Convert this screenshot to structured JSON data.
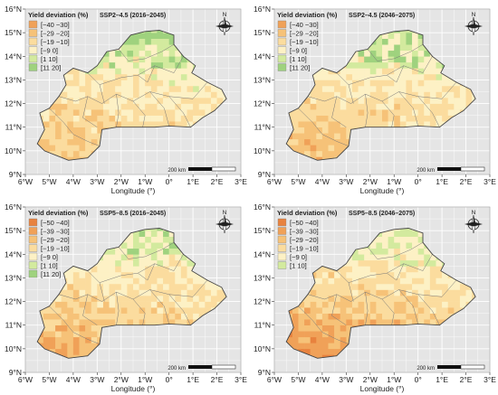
{
  "colors": {
    "c_m50_m40": "#e8823e",
    "c_m39_m30": "#f0a158",
    "c_m29_m20": "#f6c278",
    "c_m19_m10": "#fbdc9e",
    "c_m9_0": "#fdf1c5",
    "c_1_10": "#d3ea9e",
    "c_11_20": "#9fd27e",
    "plot_bg": "#e5e5e5",
    "grid": "#ffffff",
    "boundary": "#444444"
  },
  "panels": [
    {
      "title": "SSP2–4.5 (2016–2045)",
      "legend_title": "Yield deviation (%)",
      "legend": [
        {
          "label": "[−40 −30]",
          "color": "#f0a158"
        },
        {
          "label": "[−29 −20]",
          "color": "#f6c278"
        },
        {
          "label": "[−19 −10]",
          "color": "#fbdc9e"
        },
        {
          "label": "[−9  0]",
          "color": "#fdf1c5"
        },
        {
          "label": "[1  10]",
          "color": "#d3ea9e"
        },
        {
          "label": "[11  20]",
          "color": "#9fd27e"
        }
      ],
      "scale_label": "200 km",
      "north_label": "N",
      "xlabel": "Longitude (°)",
      "xticks": [
        "6°W",
        "5°W",
        "4°W",
        "3°W",
        "2°W",
        "1°W",
        "0°",
        "1°E",
        "2°E",
        "3°E"
      ],
      "yticks": [
        "9°N",
        "10°N",
        "11°N",
        "12°N",
        "13°N",
        "14°N",
        "15°N",
        "16°N"
      ],
      "south_bias": 0.35,
      "north_green": 0.55
    },
    {
      "title": "SSP2–4.5 (2046–2075)",
      "legend_title": "Yield deviation (%)",
      "legend": [
        {
          "label": "[−40 −30]",
          "color": "#f0a158"
        },
        {
          "label": "[−29 −20]",
          "color": "#f6c278"
        },
        {
          "label": "[−19 −10]",
          "color": "#fbdc9e"
        },
        {
          "label": "[−9  0]",
          "color": "#fdf1c5"
        },
        {
          "label": "[1  10]",
          "color": "#d3ea9e"
        },
        {
          "label": "[11  20]",
          "color": "#9fd27e"
        }
      ],
      "scale_label": "200 km",
      "north_label": "N",
      "xlabel": "Longitude (°)",
      "xticks": [
        "6°W",
        "5°W",
        "4°W",
        "3°W",
        "2°W",
        "1°W",
        "0°",
        "1°E",
        "2°E",
        "3°E"
      ],
      "yticks": [
        "9°N",
        "10°N",
        "11°N",
        "12°N",
        "13°N",
        "14°N",
        "15°N",
        "16°N"
      ],
      "south_bias": 0.45,
      "north_green": 0.45
    },
    {
      "title": "SSP5–8.5 (2016–2045)",
      "legend_title": "Yield deviation (%)",
      "legend": [
        {
          "label": "[−50 −40]",
          "color": "#e8823e"
        },
        {
          "label": "[−39 −30]",
          "color": "#f0a158"
        },
        {
          "label": "[−29 −20]",
          "color": "#f6c278"
        },
        {
          "label": "[−19 −10]",
          "color": "#fbdc9e"
        },
        {
          "label": "[−9  0]",
          "color": "#fdf1c5"
        },
        {
          "label": "[1  10]",
          "color": "#d3ea9e"
        },
        {
          "label": "[11  20]",
          "color": "#9fd27e"
        }
      ],
      "scale_label": "200 km",
      "north_label": "N",
      "xlabel": "Longitude (°)",
      "xticks": [
        "6°W",
        "5°W",
        "4°W",
        "3°W",
        "2°W",
        "1°W",
        "0°",
        "1°E",
        "2°E",
        "3°E"
      ],
      "yticks": [
        "9°N",
        "10°N",
        "11°N",
        "12°N",
        "13°N",
        "14°N",
        "15°N",
        "16°N"
      ],
      "south_bias": 0.6,
      "north_green": 0.2
    },
    {
      "title": "SSP5–8.5 (2046–2075)",
      "legend_title": "Yield deviation (%)",
      "legend": [
        {
          "label": "[−50 −40]",
          "color": "#e8823e"
        },
        {
          "label": "[−39 −30]",
          "color": "#f0a158"
        },
        {
          "label": "[−29 −20]",
          "color": "#f6c278"
        },
        {
          "label": "[−19 −10]",
          "color": "#fbdc9e"
        },
        {
          "label": "[−9  0]",
          "color": "#fdf1c5"
        },
        {
          "label": "[1  10]",
          "color": "#d3ea9e"
        }
      ],
      "scale_label": "200 km",
      "north_label": "N",
      "xlabel": "Longitude (°)",
      "xticks": [
        "6°W",
        "5°W",
        "4°W",
        "3°W",
        "2°W",
        "1°W",
        "0°",
        "1°E",
        "2°E",
        "3°E"
      ],
      "yticks": [
        "9°N",
        "10°N",
        "11°N",
        "12°N",
        "13°N",
        "14°N",
        "15°N",
        "16°N"
      ],
      "south_bias": 0.85,
      "north_green": 0.1
    }
  ]
}
